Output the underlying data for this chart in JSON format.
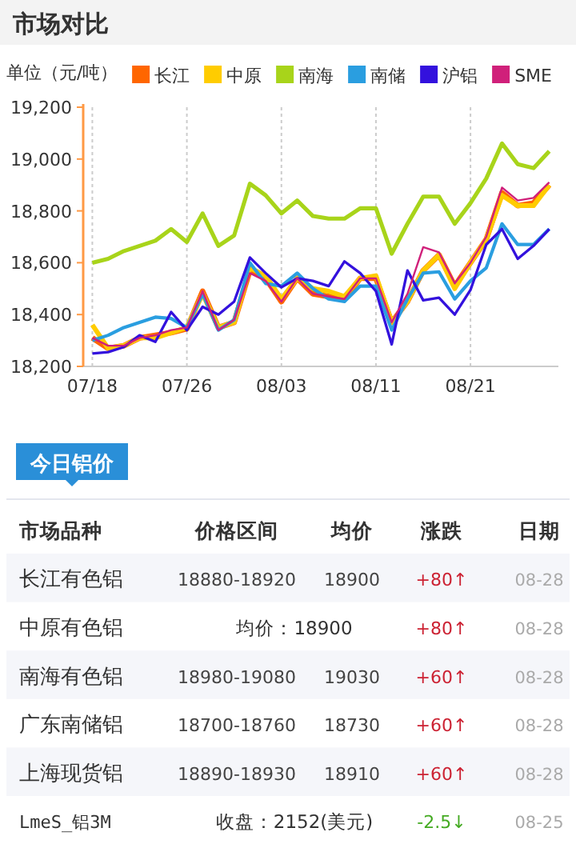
{
  "chart_data": [
    {
      "type": "line",
      "title": "市场对比",
      "ylabel": "单位（元/吨）",
      "categories": [
        "07/18",
        null,
        null,
        null,
        null,
        null,
        "07/26",
        null,
        null,
        null,
        null,
        null,
        "08/03",
        null,
        null,
        null,
        null,
        null,
        "08/11",
        null,
        null,
        null,
        null,
        null,
        "08/21",
        null,
        null,
        null,
        null,
        null
      ],
      "series": [
        {
          "name": "长江",
          "color": "#ff6600",
          "values": [
            18310,
            18270,
            18280,
            18310,
            18320,
            18330,
            18345,
            18490,
            18350,
            18370,
            18570,
            18540,
            18450,
            18540,
            18480,
            18470,
            18460,
            18540,
            18540,
            18370,
            18450,
            18570,
            18630,
            18510,
            18600,
            18690,
            18870,
            18820,
            18830,
            18900
          ]
        },
        {
          "name": "中原",
          "color": "#ffcc00",
          "values": [
            18360,
            18270,
            18280,
            18310,
            18310,
            18330,
            18350,
            18480,
            18350,
            18370,
            18580,
            18550,
            18460,
            18540,
            18500,
            18490,
            18470,
            18540,
            18550,
            18370,
            18450,
            18570,
            18630,
            18500,
            18600,
            18690,
            18860,
            18820,
            18820,
            18900
          ]
        },
        {
          "name": "南海",
          "color": "#a8d41a",
          "values": [
            18600,
            18615,
            18645,
            18665,
            18685,
            18730,
            18680,
            18790,
            18665,
            18705,
            18905,
            18860,
            18790,
            18840,
            18780,
            18770,
            18770,
            18810,
            18810,
            18635,
            18750,
            18855,
            18855,
            18750,
            18830,
            18925,
            19060,
            18980,
            18965,
            19030
          ]
        },
        {
          "name": "南储",
          "color": "#2a9ee0",
          "values": [
            18300,
            18320,
            18350,
            18370,
            18390,
            18385,
            18350,
            18480,
            18340,
            18380,
            18600,
            18520,
            18510,
            18560,
            18500,
            18460,
            18450,
            18510,
            18510,
            18340,
            18460,
            18560,
            18565,
            18460,
            18530,
            18580,
            18750,
            18670,
            18670,
            18730
          ]
        },
        {
          "name": "沪铝",
          "color": "#3311dd",
          "values": [
            18250,
            18255,
            18275,
            18320,
            18295,
            18410,
            18340,
            18430,
            18400,
            18450,
            18620,
            18560,
            18505,
            18540,
            18530,
            18510,
            18605,
            18560,
            18490,
            18285,
            18570,
            18455,
            18465,
            18400,
            18495,
            18670,
            18730,
            18615,
            18665,
            18730
          ]
        },
        {
          "name": "SME",
          "color": "#d0207a",
          "values": [
            18310,
            18280,
            18280,
            18310,
            18320,
            18340,
            18350,
            18490,
            18340,
            18380,
            18560,
            18530,
            18450,
            18540,
            18480,
            18470,
            18460,
            18540,
            18540,
            18370,
            18480,
            18660,
            18640,
            18520,
            18600,
            18700,
            18890,
            18840,
            18850,
            18910
          ]
        }
      ],
      "ylim": [
        18200,
        19200
      ],
      "yticks": [
        {
          "value": 18200,
          "label": "18,200"
        },
        {
          "value": 18400,
          "label": "18,400"
        },
        {
          "value": 18600,
          "label": "18,600"
        },
        {
          "value": 18800,
          "label": "18,800"
        },
        {
          "value": 19000,
          "label": "19,000"
        },
        {
          "value": 19200,
          "label": "19,200"
        }
      ],
      "grid": "x",
      "legend": "top"
    },
    {
      "type": "other",
      "title": "今日铝价",
      "categories": [
        "市场品种",
        "价格区间",
        "均价",
        "涨跌",
        "日期"
      ],
      "y_categories": [
        "长江有色铝",
        "中原有色铝",
        "南海有色铝",
        "广东南储铝",
        "上海现货铝",
        "LmeS_铝3M"
      ],
      "cell_labels": [
        [
          "18880-18920",
          "18900",
          "+80↑",
          "08-28"
        ],
        [
          "均价：18900",
          null,
          "+80↑",
          "08-28"
        ],
        [
          "18980-19080",
          "19030",
          "+60↑",
          "08-28"
        ],
        [
          "18700-18760",
          "18730",
          "+60↑",
          "08-28"
        ],
        [
          "18890-18930",
          "18910",
          "+60↑",
          "08-28"
        ],
        [
          "收盘：2152(美元)",
          null,
          "-2.5↓",
          "08-25"
        ]
      ],
      "colors": [
        "#cc2233",
        "#cc2233",
        "#cc2233",
        "#cc2233",
        "#cc2233",
        "#44aa22"
      ]
    }
  ]
}
